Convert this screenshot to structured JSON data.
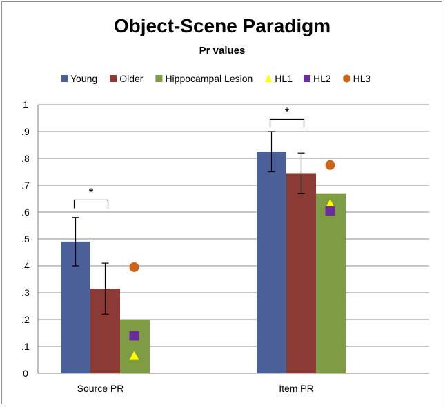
{
  "chart_data": {
    "type": "bar",
    "title": "Object-Scene Paradigm",
    "subtitle": "Pr values",
    "xlabel": "",
    "ylabel": "",
    "ylim": [
      0,
      1
    ],
    "yticks": [
      {
        "value": 0,
        "label": "0"
      },
      {
        "value": 0.1,
        "label": ".1"
      },
      {
        "value": 0.2,
        "label": ".2"
      },
      {
        "value": 0.3,
        "label": ".3"
      },
      {
        "value": 0.4,
        "label": ".4"
      },
      {
        "value": 0.5,
        "label": ".5"
      },
      {
        "value": 0.6,
        "label": ".6"
      },
      {
        "value": 0.7,
        "label": ".7"
      },
      {
        "value": 0.8,
        "label": ".8"
      },
      {
        "value": 0.9,
        "label": ".9"
      },
      {
        "value": 1,
        "label": "1"
      }
    ],
    "grid": true,
    "legend_position": "top",
    "categories": [
      "Source PR",
      "Item PR"
    ],
    "series": [
      {
        "name": "Young",
        "color": "#4b5f99",
        "values": [
          0.49,
          0.825
        ],
        "error": [
          0.09,
          0.075
        ]
      },
      {
        "name": "Older",
        "color": "#8c3a36",
        "values": [
          0.315,
          0.745
        ],
        "error": [
          0.095,
          0.075
        ]
      },
      {
        "name": "Hippocampal Lesion",
        "color": "#7e9c43",
        "values": [
          0.2,
          0.67
        ],
        "error": [
          0,
          0
        ]
      }
    ],
    "individual_points": [
      {
        "name": "HL1",
        "shape": "triangle",
        "color": "#ffff00",
        "values": [
          0.065,
          0.63
        ]
      },
      {
        "name": "HL2",
        "shape": "square",
        "color": "#6a2d9c",
        "values": [
          0.14,
          0.605
        ]
      },
      {
        "name": "HL3",
        "shape": "circle",
        "color": "#c8641e",
        "values": [
          0.395,
          0.775
        ]
      }
    ],
    "annotations": [
      {
        "text": "*",
        "category": "Source PR",
        "between": [
          "Young",
          "Older"
        ],
        "bracket_value": 0.645
      },
      {
        "text": "*",
        "category": "Item PR",
        "between": [
          "Young",
          "Older"
        ],
        "bracket_value": 0.945
      }
    ]
  }
}
